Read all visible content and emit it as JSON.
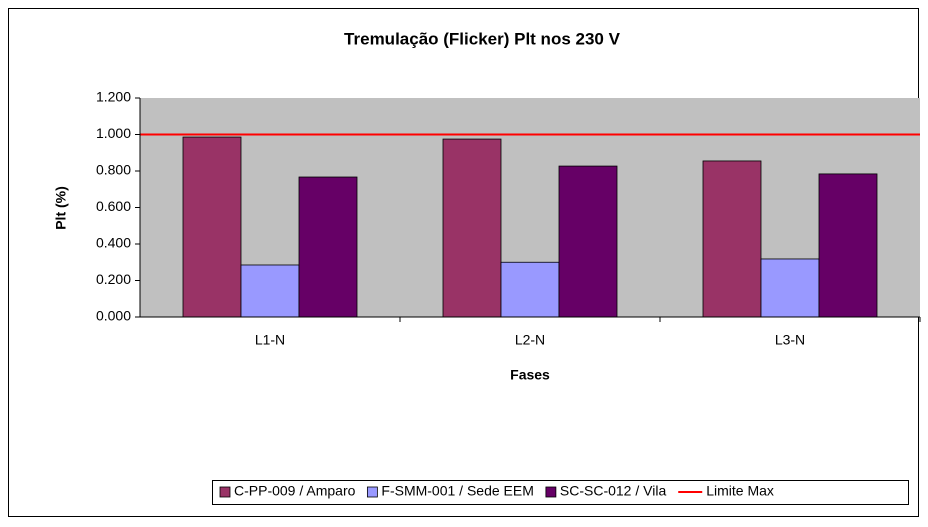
{
  "chart_data": {
    "type": "bar",
    "title": "Tremulação (Flicker) Plt nos 230 V",
    "x_label": "Fases",
    "y_label": "Plt (%)",
    "categories": [
      "L1-N",
      "L2-N",
      "L3-N"
    ],
    "series": [
      {
        "name": "C-PP-009 / Amparo",
        "color": "#993366",
        "values": [
          0.986,
          0.975,
          0.855
        ]
      },
      {
        "name": "F-SMM-001 / Sede EEM",
        "color": "#9999ff",
        "values": [
          0.285,
          0.3,
          0.318
        ]
      },
      {
        "name": "SC-SC-012 / Vila",
        "color": "#660066",
        "values": [
          0.767,
          0.827,
          0.784
        ]
      },
      {
        "name": "Limite Max",
        "color": "#ff0000",
        "type": "line",
        "values": [
          1,
          1,
          1
        ]
      }
    ],
    "ylim": [
      0,
      1.2
    ],
    "yticks": [
      {
        "value": 0,
        "label": "0.000"
      },
      {
        "value": 0.2,
        "label": "0.200"
      },
      {
        "value": 0.4,
        "label": "0.400"
      },
      {
        "value": 0.6,
        "label": "0.600"
      },
      {
        "value": 0.8,
        "label": "0.800"
      },
      {
        "value": 1,
        "label": "1.000"
      },
      {
        "value": 1.2,
        "label": "1.200"
      }
    ],
    "legend": "bottom",
    "plot_background": "#c0c0c0"
  }
}
